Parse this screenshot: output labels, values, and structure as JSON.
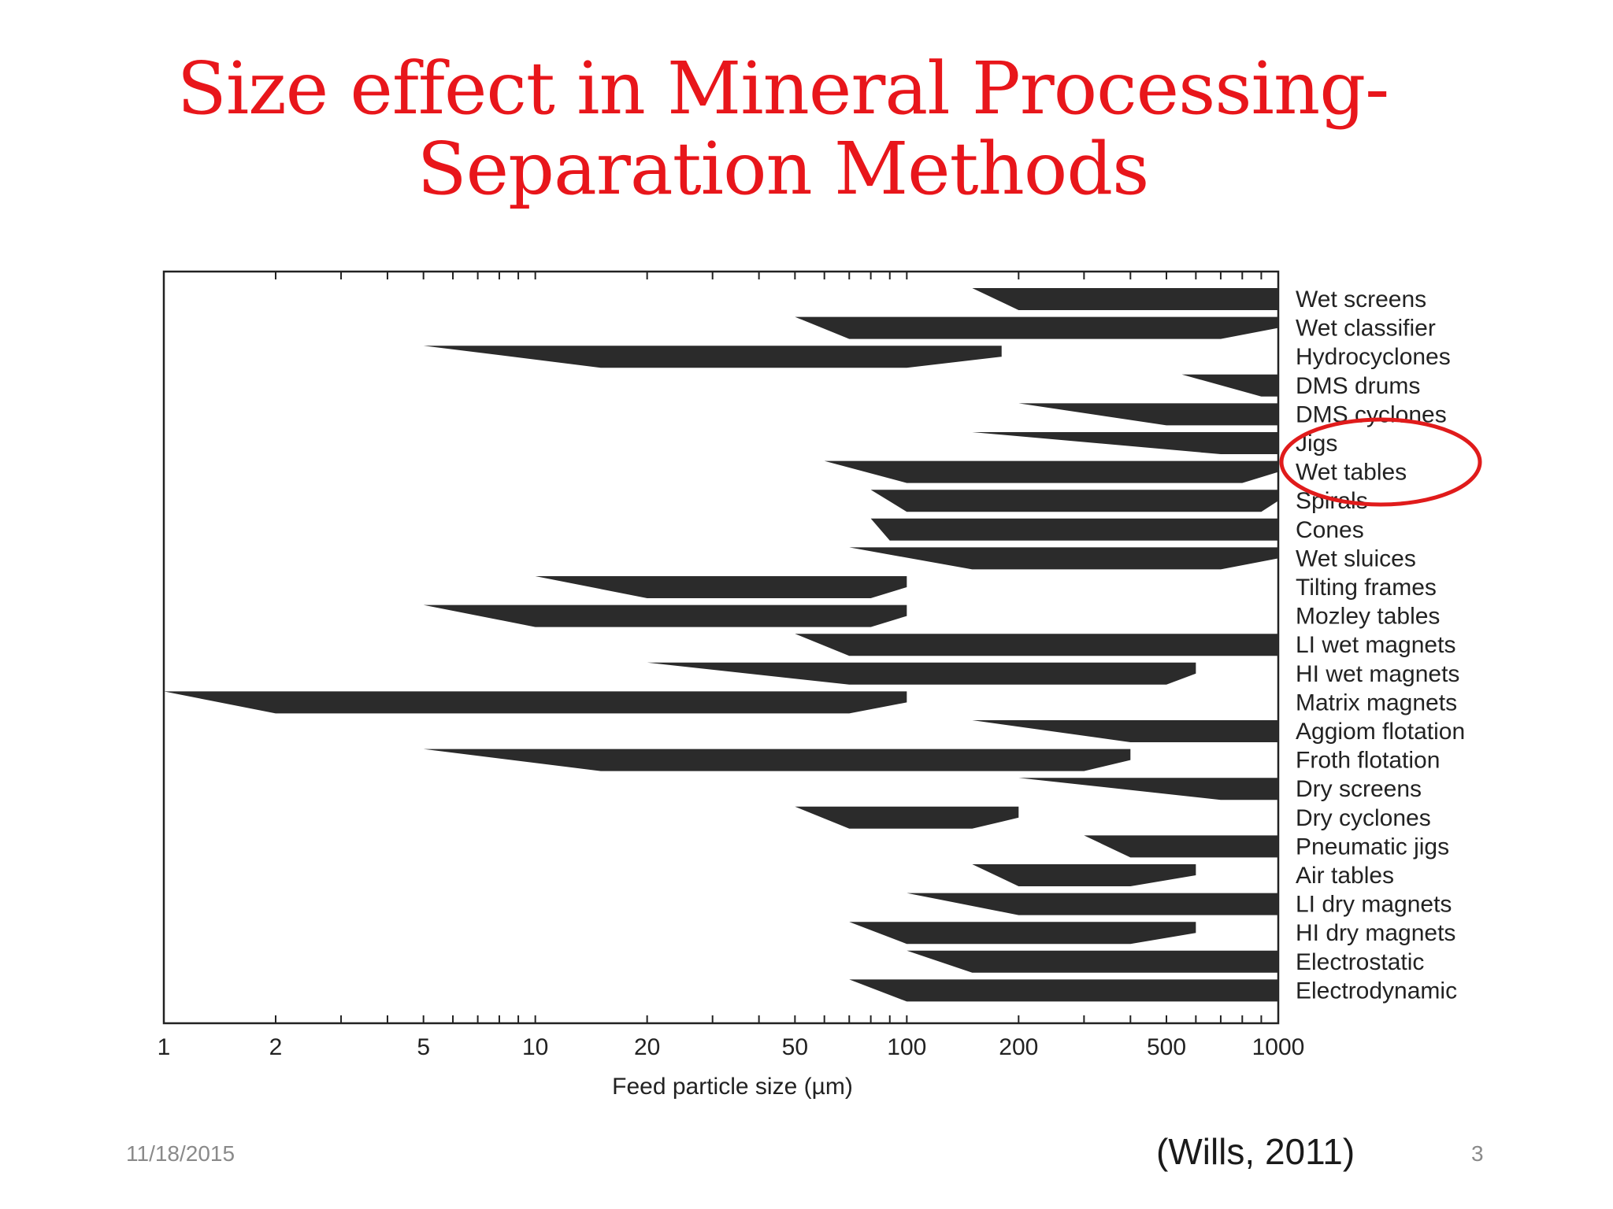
{
  "slide": {
    "title_line1": "Size effect in Mineral Processing-",
    "title_line2": "Separation Methods",
    "date": "11/18/2015",
    "citation": "(Wills, 2011)",
    "page_number": "3"
  },
  "colors": {
    "title": "#e8161b",
    "bars": "#2b2b2b",
    "highlight": "#e01b1b"
  },
  "chart_data": {
    "type": "bar",
    "orientation": "horizontal-range",
    "xlabel": "Feed particle size (µm)",
    "x_scale": "log",
    "xlim": [
      1,
      1000
    ],
    "x_ticks": [
      1,
      2,
      5,
      10,
      20,
      50,
      100,
      200,
      500,
      1000
    ],
    "x_tick_labels": [
      "1",
      "2",
      "5",
      "10",
      "20",
      "50",
      "100",
      "200",
      "500",
      "1000"
    ],
    "highlighted": [
      "Jigs",
      "Wet tables"
    ],
    "series": [
      {
        "name": "Wet screens",
        "min": 150,
        "max": 1000,
        "full_min": 200,
        "full_max": 1000
      },
      {
        "name": "Wet classifier",
        "min": 50,
        "max": 1000,
        "full_min": 70,
        "full_max": 700
      },
      {
        "name": "Hydrocyclones",
        "min": 5,
        "max": 180,
        "full_min": 15,
        "full_max": 100
      },
      {
        "name": "DMS drums",
        "min": 550,
        "max": 1000,
        "full_min": 900,
        "full_max": 1000
      },
      {
        "name": "DMS cyclones",
        "min": 200,
        "max": 1000,
        "full_min": 500,
        "full_max": 1000
      },
      {
        "name": "Jigs",
        "min": 150,
        "max": 1000,
        "full_min": 700,
        "full_max": 1000
      },
      {
        "name": "Wet tables",
        "min": 60,
        "max": 1000,
        "full_min": 100,
        "full_max": 800
      },
      {
        "name": "Spirals",
        "min": 80,
        "max": 1000,
        "full_min": 100,
        "full_max": 900
      },
      {
        "name": "Cones",
        "min": 80,
        "max": 1000,
        "full_min": 90,
        "full_max": 1000
      },
      {
        "name": "Wet sluices",
        "min": 70,
        "max": 1000,
        "full_min": 150,
        "full_max": 700
      },
      {
        "name": "Tilting frames",
        "min": 10,
        "max": 100,
        "full_min": 20,
        "full_max": 80
      },
      {
        "name": "Mozley tables",
        "min": 5,
        "max": 100,
        "full_min": 10,
        "full_max": 80
      },
      {
        "name": "LI wet magnets",
        "min": 50,
        "max": 1000,
        "full_min": 70,
        "full_max": 1000
      },
      {
        "name": "HI wet magnets",
        "min": 20,
        "max": 600,
        "full_min": 70,
        "full_max": 500
      },
      {
        "name": "Matrix magnets",
        "min": 1,
        "max": 100,
        "full_min": 2,
        "full_max": 70
      },
      {
        "name": "Aggiom flotation",
        "min": 150,
        "max": 1000,
        "full_min": 400,
        "full_max": 1000
      },
      {
        "name": "Froth flotation",
        "min": 5,
        "max": 400,
        "full_min": 15,
        "full_max": 300
      },
      {
        "name": "Dry screens",
        "min": 200,
        "max": 1000,
        "full_min": 700,
        "full_max": 1000
      },
      {
        "name": "Dry cyclones",
        "min": 50,
        "max": 200,
        "full_min": 70,
        "full_max": 150
      },
      {
        "name": "Pneumatic jigs",
        "min": 300,
        "max": 1000,
        "full_min": 400,
        "full_max": 1000
      },
      {
        "name": "Air tables",
        "min": 150,
        "max": 600,
        "full_min": 200,
        "full_max": 400
      },
      {
        "name": "LI dry magnets",
        "min": 100,
        "max": 1000,
        "full_min": 200,
        "full_max": 1000
      },
      {
        "name": "HI dry magnets",
        "min": 70,
        "max": 600,
        "full_min": 100,
        "full_max": 400
      },
      {
        "name": "Electrostatic",
        "min": 100,
        "max": 1000,
        "full_min": 150,
        "full_max": 1000
      },
      {
        "name": "Electrodynamic",
        "min": 70,
        "max": 1000,
        "full_min": 100,
        "full_max": 1000
      }
    ]
  }
}
